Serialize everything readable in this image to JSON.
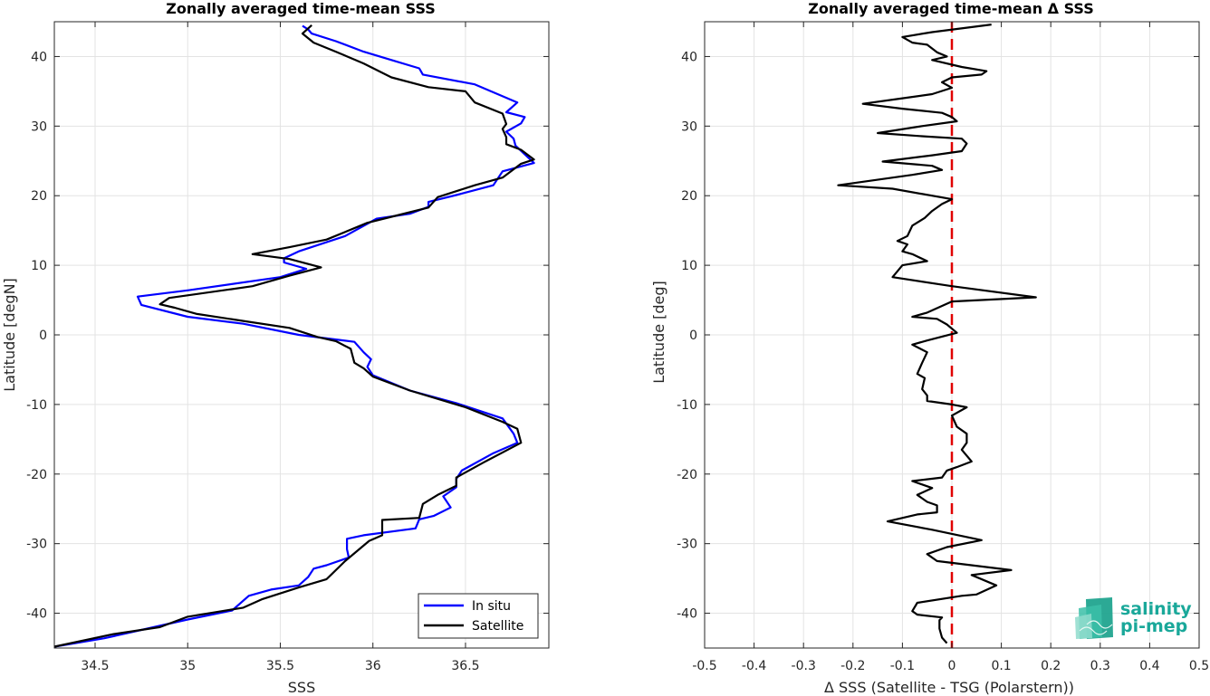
{
  "chart_data": [
    {
      "type": "line",
      "title": "Zonally averaged time-mean SSS",
      "xlabel": "SSS",
      "ylabel": "Latitude [degN]",
      "xlim": [
        34.28,
        36.95
      ],
      "ylim": [
        -45,
        45
      ],
      "xticks": [
        34.5,
        35,
        35.5,
        36,
        36.5
      ],
      "xtick_labels": [
        "34.5",
        "35",
        "35.5",
        "36",
        "36.5"
      ],
      "yticks": [
        -40,
        -30,
        -20,
        -10,
        0,
        10,
        20,
        30,
        40
      ],
      "ytick_labels": [
        "-40",
        "-30",
        "-20",
        "-10",
        "0",
        "10",
        "20",
        "30",
        "40"
      ],
      "grid": true,
      "legend_position": "bottom-right",
      "series": [
        {
          "name": "In situ",
          "color": "#0000ff",
          "points": [
            [
              34.28,
              -44.8
            ],
            [
              34.55,
              -43.6
            ],
            [
              34.75,
              -42.4
            ],
            [
              35.0,
              -40.9
            ],
            [
              35.24,
              -39.6
            ],
            [
              35.33,
              -37.5
            ],
            [
              35.45,
              -36.6
            ],
            [
              35.6,
              -36.0
            ],
            [
              35.65,
              -34.8
            ],
            [
              35.68,
              -33.6
            ],
            [
              35.75,
              -33.1
            ],
            [
              35.87,
              -32.0
            ],
            [
              35.86,
              -30.8
            ],
            [
              35.86,
              -29.3
            ],
            [
              35.95,
              -28.8
            ],
            [
              36.23,
              -27.8
            ],
            [
              36.25,
              -26.5
            ],
            [
              36.33,
              -26.0
            ],
            [
              36.42,
              -24.8
            ],
            [
              36.38,
              -23.2
            ],
            [
              36.45,
              -21.9
            ],
            [
              36.45,
              -20.7
            ],
            [
              36.48,
              -19.5
            ],
            [
              36.65,
              -17.0
            ],
            [
              36.78,
              -15.5
            ],
            [
              36.76,
              -14.2
            ],
            [
              36.7,
              -12.0
            ],
            [
              36.45,
              -9.8
            ],
            [
              36.2,
              -8.0
            ],
            [
              36.0,
              -5.8
            ],
            [
              35.97,
              -4.6
            ],
            [
              35.99,
              -3.5
            ],
            [
              35.95,
              -2.5
            ],
            [
              35.9,
              -1.0
            ],
            [
              35.6,
              0.0
            ],
            [
              35.3,
              1.6
            ],
            [
              35.0,
              2.6
            ],
            [
              34.75,
              4.3
            ],
            [
              34.73,
              5.5
            ],
            [
              35.0,
              6.4
            ],
            [
              35.5,
              8.3
            ],
            [
              35.64,
              9.5
            ],
            [
              35.52,
              10.4
            ],
            [
              35.52,
              11.0
            ],
            [
              35.6,
              12.0
            ],
            [
              35.85,
              14.2
            ],
            [
              36.02,
              16.7
            ],
            [
              36.2,
              17.4
            ],
            [
              36.3,
              18.4
            ],
            [
              36.3,
              19.1
            ],
            [
              36.45,
              20.1
            ],
            [
              36.65,
              21.5
            ],
            [
              36.7,
              23.5
            ],
            [
              36.87,
              24.7
            ],
            [
              36.77,
              27.2
            ],
            [
              36.76,
              28.2
            ],
            [
              36.72,
              29.2
            ],
            [
              36.8,
              30.4
            ],
            [
              36.82,
              31.3
            ],
            [
              36.72,
              32.0
            ],
            [
              36.78,
              33.4
            ],
            [
              36.55,
              36.0
            ],
            [
              36.27,
              37.4
            ],
            [
              36.25,
              38.3
            ],
            [
              36.1,
              39.5
            ],
            [
              35.95,
              40.7
            ],
            [
              35.8,
              42.2
            ],
            [
              35.67,
              43.3
            ],
            [
              35.65,
              43.9
            ],
            [
              35.62,
              44.4
            ]
          ]
        },
        {
          "name": "Satellite",
          "color": "#000000",
          "points": [
            [
              34.28,
              -44.8
            ],
            [
              34.6,
              -43.0
            ],
            [
              34.85,
              -42.0
            ],
            [
              35.0,
              -40.5
            ],
            [
              35.3,
              -39.2
            ],
            [
              35.4,
              -38.0
            ],
            [
              35.6,
              -36.3
            ],
            [
              35.75,
              -35.1
            ],
            [
              35.85,
              -32.5
            ],
            [
              35.98,
              -29.6
            ],
            [
              36.05,
              -28.8
            ],
            [
              36.05,
              -26.6
            ],
            [
              36.25,
              -26.3
            ],
            [
              36.27,
              -24.3
            ],
            [
              36.35,
              -23.0
            ],
            [
              36.45,
              -21.7
            ],
            [
              36.45,
              -20.5
            ],
            [
              36.6,
              -18.3
            ],
            [
              36.8,
              -15.5
            ],
            [
              36.78,
              -13.5
            ],
            [
              36.7,
              -12.5
            ],
            [
              36.5,
              -10.4
            ],
            [
              36.2,
              -8.0
            ],
            [
              36.0,
              -6.0
            ],
            [
              35.95,
              -4.8
            ],
            [
              35.9,
              -4.0
            ],
            [
              35.88,
              -2.0
            ],
            [
              35.8,
              -0.9
            ],
            [
              35.7,
              -0.3
            ],
            [
              35.55,
              1.0
            ],
            [
              35.3,
              2.0
            ],
            [
              35.05,
              3.0
            ],
            [
              34.93,
              3.9
            ],
            [
              34.85,
              4.4
            ],
            [
              34.9,
              5.3
            ],
            [
              35.35,
              7.0
            ],
            [
              35.55,
              8.5
            ],
            [
              35.72,
              9.7
            ],
            [
              35.55,
              10.9
            ],
            [
              35.35,
              11.6
            ],
            [
              35.55,
              12.6
            ],
            [
              35.75,
              13.7
            ],
            [
              35.97,
              16.1
            ],
            [
              36.15,
              17.3
            ],
            [
              36.3,
              18.3
            ],
            [
              36.35,
              19.8
            ],
            [
              36.55,
              21.5
            ],
            [
              36.7,
              22.6
            ],
            [
              36.8,
              24.6
            ],
            [
              36.87,
              25.2
            ],
            [
              36.8,
              26.6
            ],
            [
              36.72,
              27.4
            ],
            [
              36.72,
              28.4
            ],
            [
              36.7,
              29.6
            ],
            [
              36.72,
              30.3
            ],
            [
              36.7,
              31.8
            ],
            [
              36.55,
              33.4
            ],
            [
              36.5,
              35.0
            ],
            [
              36.3,
              35.6
            ],
            [
              36.1,
              37.0
            ],
            [
              35.95,
              39.0
            ],
            [
              35.8,
              40.7
            ],
            [
              35.68,
              42.0
            ],
            [
              35.62,
              43.3
            ],
            [
              35.67,
              44.5
            ]
          ]
        }
      ]
    },
    {
      "type": "line",
      "title": "Zonally averaged time-mean Δ SSS",
      "xlabel": "Δ SSS (Satellite - TSG (Polarstern))",
      "ylabel": "Latitude [deg]",
      "xlim": [
        -0.5,
        0.5
      ],
      "ylim": [
        -45,
        45
      ],
      "xticks": [
        -0.5,
        -0.4,
        -0.3,
        -0.2,
        -0.1,
        0,
        0.1,
        0.2,
        0.3,
        0.4,
        0.5
      ],
      "xtick_labels": [
        "-0.5",
        "-0.4",
        "-0.3",
        "-0.2",
        "-0.1",
        "0",
        "0.1",
        "0.2",
        "0.3",
        "0.4",
        "0.5"
      ],
      "yticks": [
        -40,
        -30,
        -20,
        -10,
        0,
        10,
        20,
        30,
        40
      ],
      "ytick_labels": [
        "-40",
        "-30",
        "-20",
        "-10",
        "0",
        "10",
        "20",
        "30",
        "40"
      ],
      "grid": true,
      "reference_line": {
        "x": 0,
        "color": "#e00000",
        "style": "dashed"
      },
      "series": [
        {
          "color": "#000000",
          "points": [
            [
              -0.01,
              -44.3
            ],
            [
              -0.02,
              -43.5
            ],
            [
              -0.025,
              -42.2
            ],
            [
              -0.025,
              -41.0
            ],
            [
              -0.02,
              -40.6
            ],
            [
              -0.07,
              -40.2
            ],
            [
              -0.08,
              -39.7
            ],
            [
              -0.07,
              -38.5
            ],
            [
              0.02,
              -37.5
            ],
            [
              0.05,
              -37.3
            ],
            [
              0.09,
              -36.0
            ],
            [
              0.04,
              -34.5
            ],
            [
              0.12,
              -33.8
            ],
            [
              -0.03,
              -32.5
            ],
            [
              -0.05,
              -31.5
            ],
            [
              -0.01,
              -30.5
            ],
            [
              0.06,
              -29.5
            ],
            [
              -0.04,
              -28.0
            ],
            [
              -0.13,
              -26.8
            ],
            [
              -0.07,
              -25.8
            ],
            [
              -0.03,
              -25.5
            ],
            [
              -0.03,
              -24.5
            ],
            [
              -0.05,
              -24.0
            ],
            [
              -0.07,
              -23.0
            ],
            [
              -0.04,
              -22.0
            ],
            [
              -0.08,
              -21.0
            ],
            [
              -0.02,
              -20.5
            ],
            [
              -0.01,
              -19.5
            ],
            [
              0.01,
              -19.0
            ],
            [
              0.04,
              -18.2
            ],
            [
              0.02,
              -16.5
            ],
            [
              0.03,
              -15.5
            ],
            [
              0.03,
              -14.2
            ],
            [
              0.01,
              -13.2
            ],
            [
              0.0,
              -11.6
            ],
            [
              0.03,
              -10.4
            ],
            [
              0.0,
              -10.0
            ],
            [
              -0.05,
              -9.5
            ],
            [
              -0.05,
              -8.7
            ],
            [
              -0.06,
              -7.8
            ],
            [
              -0.055,
              -6.2
            ],
            [
              -0.07,
              -5.6
            ],
            [
              -0.06,
              -4.0
            ],
            [
              -0.05,
              -2.5
            ],
            [
              -0.08,
              -1.4
            ],
            [
              -0.05,
              -0.8
            ],
            [
              0.01,
              0.3
            ],
            [
              -0.01,
              1.5
            ],
            [
              -0.03,
              2.3
            ],
            [
              -0.08,
              2.6
            ],
            [
              -0.05,
              3.2
            ],
            [
              0.0,
              4.8
            ],
            [
              0.17,
              5.4
            ],
            [
              0.0,
              7.0
            ],
            [
              -0.12,
              8.3
            ],
            [
              -0.1,
              10.0
            ],
            [
              -0.05,
              10.6
            ],
            [
              -0.08,
              11.6
            ],
            [
              -0.1,
              12.0
            ],
            [
              -0.09,
              13.0
            ],
            [
              -0.11,
              13.5
            ],
            [
              -0.09,
              14.2
            ],
            [
              -0.08,
              15.7
            ],
            [
              -0.055,
              16.8
            ],
            [
              -0.04,
              17.8
            ],
            [
              -0.02,
              18.8
            ],
            [
              0.0,
              19.5
            ],
            [
              -0.12,
              21.0
            ],
            [
              -0.23,
              21.5
            ],
            [
              -0.08,
              23.0
            ],
            [
              -0.02,
              23.7
            ],
            [
              -0.04,
              24.3
            ],
            [
              -0.14,
              24.9
            ],
            [
              -0.04,
              25.8
            ],
            [
              0.02,
              26.4
            ],
            [
              0.03,
              27.5
            ],
            [
              0.02,
              28.2
            ],
            [
              -0.05,
              28.5
            ],
            [
              -0.15,
              29.0
            ],
            [
              -0.06,
              30.0
            ],
            [
              0.01,
              30.7
            ],
            [
              0.0,
              31.3
            ],
            [
              -0.02,
              31.9
            ],
            [
              -0.1,
              32.5
            ],
            [
              -0.18,
              33.2
            ],
            [
              -0.1,
              34.0
            ],
            [
              -0.04,
              34.6
            ],
            [
              0.0,
              35.5
            ],
            [
              -0.02,
              36.3
            ],
            [
              0.0,
              37.0
            ],
            [
              0.06,
              37.4
            ],
            [
              0.07,
              37.9
            ],
            [
              0.02,
              38.5
            ],
            [
              -0.04,
              39.5
            ],
            [
              -0.01,
              40.0
            ],
            [
              -0.03,
              40.6
            ],
            [
              -0.05,
              41.7
            ],
            [
              -0.08,
              42.0
            ],
            [
              -0.1,
              42.8
            ],
            [
              -0.04,
              43.5
            ],
            [
              0.08,
              44.6
            ]
          ]
        }
      ]
    }
  ],
  "logo": {
    "line1": "salinity",
    "line2": "pi-mep",
    "color": "#1aa89a"
  }
}
